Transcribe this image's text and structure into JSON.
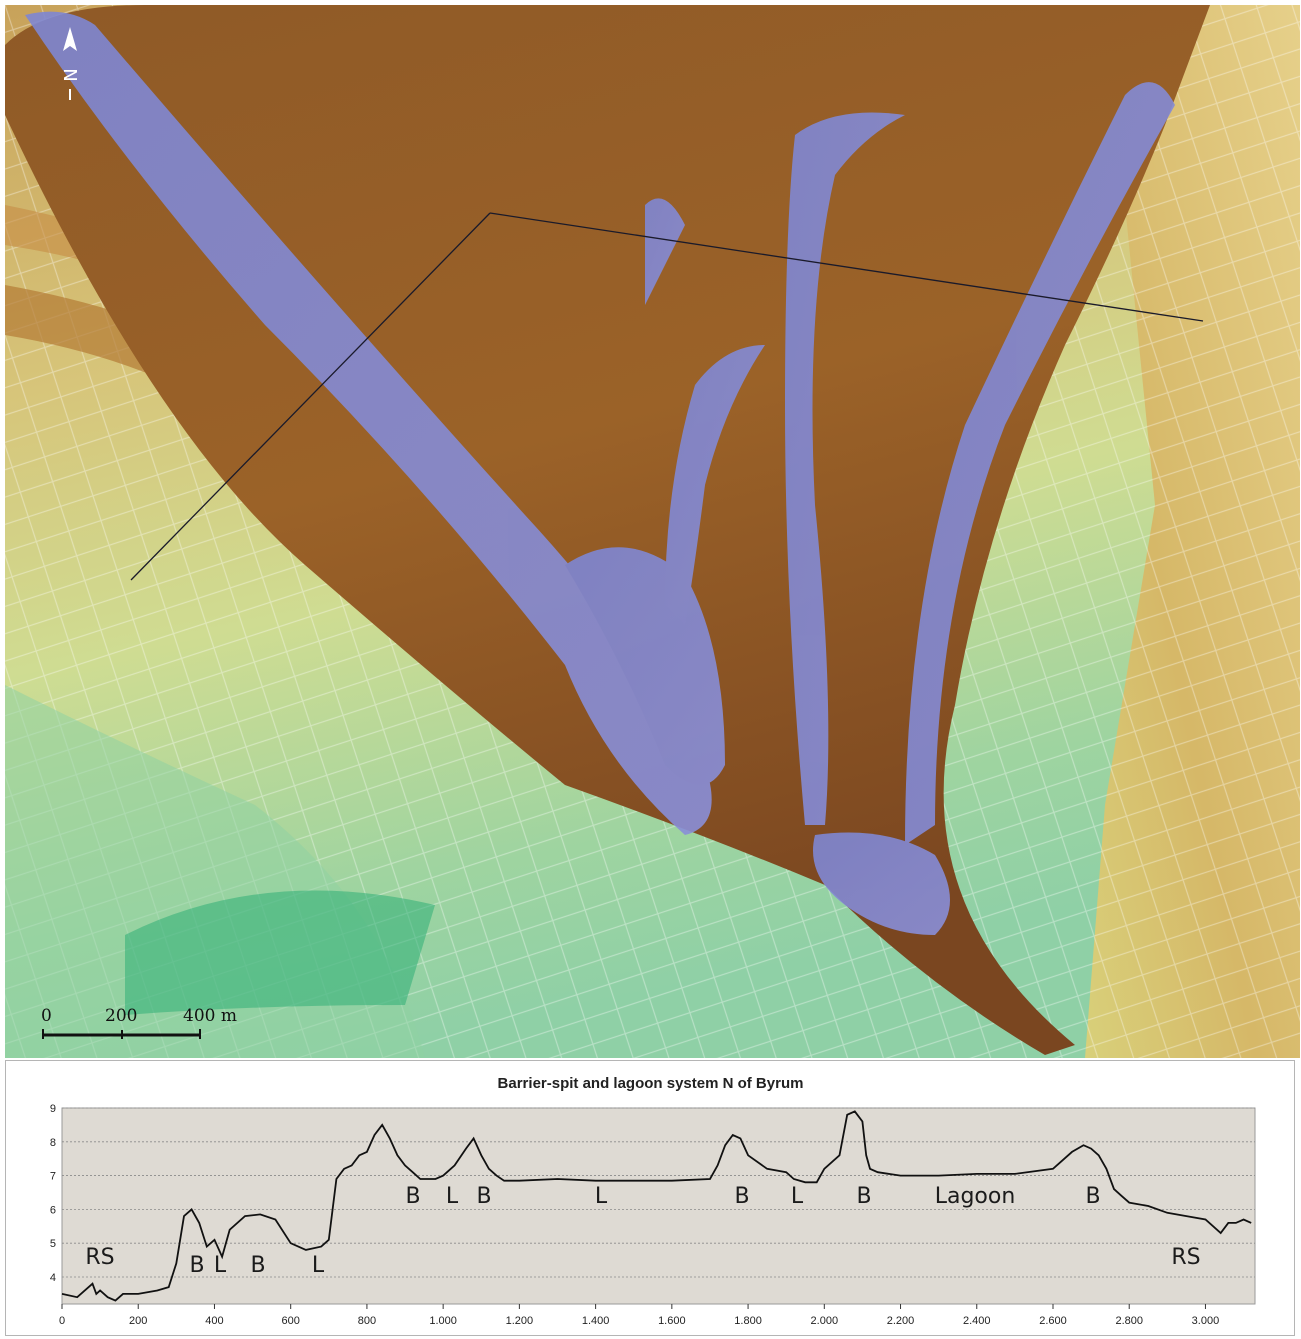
{
  "map": {
    "north_label": "N",
    "scale_bar": {
      "labels": [
        "0",
        "200",
        "400 m"
      ]
    }
  },
  "profile": {
    "title": "Barrier-spit and lagoon system N of Byrum",
    "annotations": [
      "RS",
      "B",
      "L",
      "B",
      "L",
      "B",
      "L",
      "B",
      "L",
      "B",
      "L",
      "B",
      "Lagoon",
      "B",
      "RS"
    ]
  },
  "chart_data": {
    "type": "line",
    "title": "Barrier-spit and lagoon system N of Byrum",
    "xlabel": "",
    "ylabel": "",
    "xlim": [
      0,
      3130
    ],
    "ylim": [
      3.2,
      9
    ],
    "x_ticks": [
      "0",
      "200",
      "400",
      "600",
      "800",
      "1.000",
      "1.200",
      "1.400",
      "1.600",
      "1.800",
      "2.000",
      "2.200",
      "2.400",
      "2.600",
      "2.800",
      "3.000"
    ],
    "y_ticks": [
      "4",
      "5",
      "6",
      "7",
      "8",
      "9"
    ],
    "grid": true,
    "series": [
      {
        "x": [
          0,
          40,
          80,
          90,
          100,
          120,
          140,
          160,
          200,
          250,
          280,
          300,
          320,
          340,
          360,
          380,
          400,
          420,
          440,
          480,
          520,
          560,
          600,
          640,
          680,
          700,
          720,
          740,
          760,
          780,
          800,
          820,
          840,
          860,
          880,
          900,
          920,
          940,
          960,
          980,
          1000,
          1030,
          1060,
          1080,
          1100,
          1120,
          1140,
          1160,
          1200,
          1300,
          1400,
          1500,
          1600,
          1700,
          1720,
          1740,
          1760,
          1780,
          1800,
          1850,
          1900,
          1920,
          1950,
          1980,
          2000,
          2040,
          2060,
          2080,
          2100,
          2110,
          2120,
          2140,
          2200,
          2300,
          2400,
          2500,
          2600,
          2650,
          2680,
          2700,
          2720,
          2740,
          2760,
          2780,
          2800,
          2850,
          2900,
          2950,
          3000,
          3040,
          3060,
          3080,
          3100,
          3120
        ],
        "y": [
          3.5,
          3.4,
          3.8,
          3.5,
          3.6,
          3.4,
          3.3,
          3.5,
          3.5,
          3.6,
          3.7,
          4.4,
          5.8,
          6.0,
          5.6,
          4.9,
          5.1,
          4.6,
          5.4,
          5.8,
          5.85,
          5.7,
          5.0,
          4.8,
          4.9,
          5.1,
          6.9,
          7.2,
          7.3,
          7.6,
          7.7,
          8.2,
          8.5,
          8.1,
          7.6,
          7.3,
          7.1,
          6.9,
          6.9,
          6.9,
          7.0,
          7.3,
          7.8,
          8.1,
          7.6,
          7.2,
          7.0,
          6.85,
          6.85,
          6.9,
          6.85,
          6.85,
          6.85,
          6.9,
          7.3,
          7.9,
          8.2,
          8.1,
          7.6,
          7.2,
          7.1,
          6.9,
          6.8,
          6.8,
          7.2,
          7.6,
          8.8,
          8.9,
          8.6,
          7.6,
          7.2,
          7.1,
          7.0,
          7.0,
          7.05,
          7.05,
          7.2,
          7.7,
          7.9,
          7.8,
          7.6,
          7.2,
          6.6,
          6.4,
          6.2,
          6.1,
          5.9,
          5.8,
          5.7,
          5.3,
          5.6,
          5.6,
          5.7,
          5.6
        ]
      }
    ]
  }
}
